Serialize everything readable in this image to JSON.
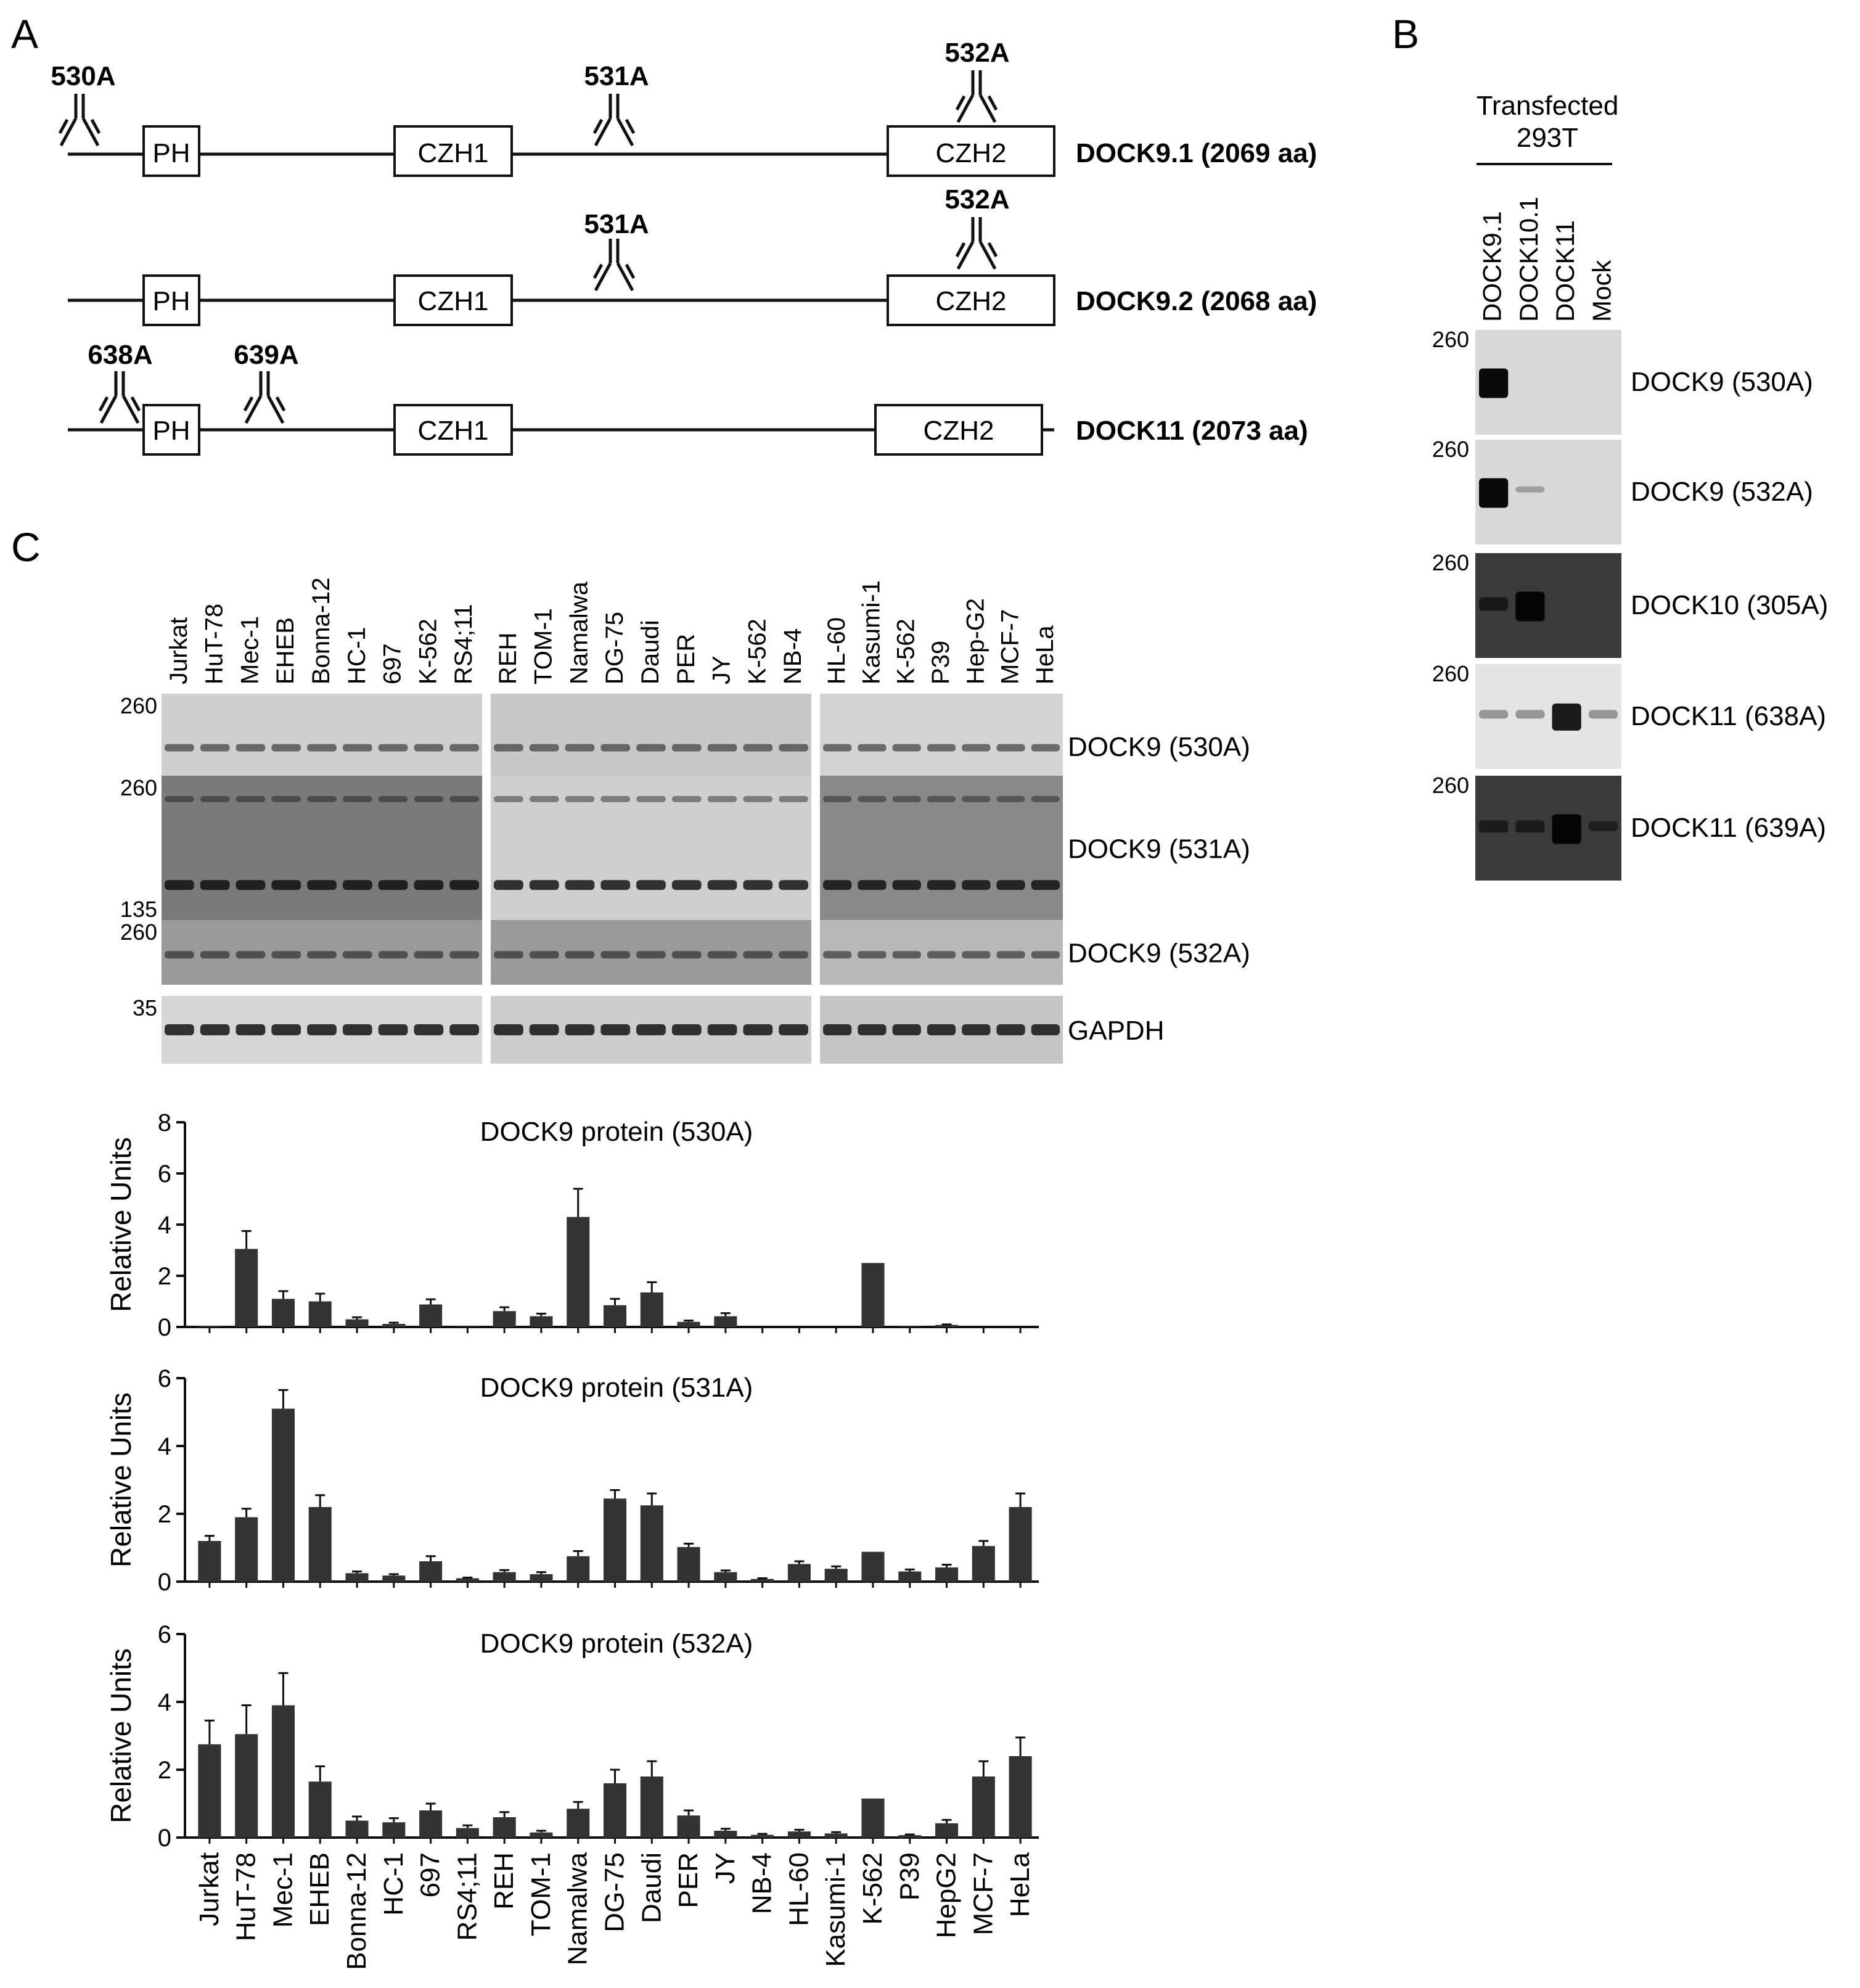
{
  "panel_labels": {
    "a": "A",
    "b": "B",
    "c": "C"
  },
  "panel_a": {
    "constructs": [
      {
        "name": "DOCK9.1 (2069 aa)",
        "domains": [
          "PH",
          "CZH1",
          "CZH2"
        ],
        "antibodies": [
          "530A",
          "531A",
          "532A"
        ]
      },
      {
        "name": "DOCK9.2 (2068 aa)",
        "domains": [
          "PH",
          "CZH1",
          "CZH2"
        ],
        "antibodies": [
          "531A",
          "532A"
        ]
      },
      {
        "name": "DOCK11 (2073 aa)",
        "domains": [
          "PH",
          "CZH1",
          "CZH2"
        ],
        "antibodies": [
          "638A",
          "639A"
        ]
      }
    ]
  },
  "panel_b": {
    "header_line1": "Transfected",
    "header_line2": "293T",
    "lanes": [
      "DOCK9.1",
      "DOCK10.1",
      "DOCK11",
      "Mock"
    ],
    "blots": [
      {
        "label": "DOCK9 (530A)",
        "marker": "260",
        "bands": [
          1.0,
          0,
          0,
          0
        ]
      },
      {
        "label": "DOCK9 (532A)",
        "marker": "260",
        "bands": [
          1.0,
          0.05,
          0,
          0
        ]
      },
      {
        "label": "DOCK10 (305A)",
        "marker": "260",
        "bands": [
          0.35,
          1.0,
          0,
          0
        ]
      },
      {
        "label": "DOCK11 (638A)",
        "marker": "260",
        "bands": [
          0.15,
          0.15,
          0.9,
          0.15
        ]
      },
      {
        "label": "DOCK11 (639A)",
        "marker": "260",
        "bands": [
          0.3,
          0.3,
          1.0,
          0.2
        ]
      }
    ]
  },
  "panel_c": {
    "blot_lanes": [
      [
        "Jurkat",
        "HuT-78",
        "Mec-1",
        "EHEB",
        "Bonna-12",
        "HC-1",
        "697",
        "K-562",
        "RS4;11"
      ],
      [
        "REH",
        "TOM-1",
        "Namalwa",
        "DG-75",
        "Daudi",
        "PER",
        "JY",
        "K-562",
        "NB-4"
      ],
      [
        "HL-60",
        "Kasumi-1",
        "K-562",
        "P39",
        "Hep-G2",
        "MCF-7",
        "HeLa"
      ]
    ],
    "blots": [
      {
        "label": "DOCK9 (530A)",
        "markers": [
          "260"
        ]
      },
      {
        "label": "DOCK9 (531A)",
        "markers": [
          "260",
          "135"
        ]
      },
      {
        "label": "DOCK9 (532A)",
        "markers": [
          "260"
        ]
      },
      {
        "label": "GAPDH",
        "markers": [
          "35"
        ]
      }
    ]
  },
  "chart_data": [
    {
      "type": "bar",
      "title": "DOCK9 protein (530A)",
      "ylabel": "Relative Units",
      "ylim": [
        0,
        8
      ],
      "yticks": [
        "0",
        "2",
        "4",
        "6",
        "8"
      ],
      "categories": [
        "Jurkat",
        "HuT-78",
        "Mec-1",
        "EHEB",
        "Bonna-12",
        "HC-1",
        "697",
        "RS4;11",
        "REH",
        "TOM-1",
        "Namalwa",
        "DG-75",
        "Daudi",
        "PER",
        "JY",
        "NB-4",
        "HL-60",
        "Kasumi-1",
        "K-562",
        "P39",
        "HepG2",
        "MCF-7",
        "HeLa"
      ],
      "values": [
        0.05,
        3.05,
        1.1,
        1.0,
        0.3,
        0.12,
        0.88,
        0.02,
        0.62,
        0.42,
        4.3,
        0.85,
        1.35,
        0.2,
        0.42,
        0.0,
        0.0,
        0.0,
        2.5,
        0.03,
        0.08,
        0.0,
        0.0
      ],
      "errors": [
        0.0,
        0.7,
        0.3,
        0.3,
        0.08,
        0.05,
        0.2,
        0.0,
        0.15,
        0.1,
        1.1,
        0.25,
        0.4,
        0.05,
        0.12,
        0.0,
        0.0,
        0.0,
        0.0,
        0.0,
        0.02,
        0.0,
        0.0
      ]
    },
    {
      "type": "bar",
      "title": "DOCK9 protein (531A)",
      "ylabel": "Relative Units",
      "ylim": [
        0,
        6
      ],
      "yticks": [
        "0",
        "2",
        "4",
        "6"
      ],
      "categories": [
        "Jurkat",
        "HuT-78",
        "Mec-1",
        "EHEB",
        "Bonna-12",
        "HC-1",
        "697",
        "RS4;11",
        "REH",
        "TOM-1",
        "Namalwa",
        "DG-75",
        "Daudi",
        "PER",
        "JY",
        "NB-4",
        "HL-60",
        "Kasumi-1",
        "K-562",
        "P39",
        "HepG2",
        "MCF-7",
        "HeLa"
      ],
      "values": [
        1.2,
        1.9,
        5.1,
        2.2,
        0.25,
        0.18,
        0.6,
        0.1,
        0.28,
        0.22,
        0.75,
        2.45,
        2.25,
        1.02,
        0.28,
        0.08,
        0.52,
        0.38,
        0.88,
        0.3,
        0.42,
        1.05,
        2.2
      ],
      "errors": [
        0.15,
        0.25,
        0.55,
        0.35,
        0.05,
        0.04,
        0.15,
        0.02,
        0.06,
        0.06,
        0.15,
        0.25,
        0.35,
        0.1,
        0.05,
        0.02,
        0.08,
        0.07,
        0.0,
        0.06,
        0.08,
        0.15,
        0.4
      ]
    },
    {
      "type": "bar",
      "title": "DOCK9 protein (532A)",
      "ylabel": "Relative Units",
      "ylim": [
        0,
        6
      ],
      "yticks": [
        "0",
        "2",
        "4",
        "6"
      ],
      "categories": [
        "Jurkat",
        "HuT-78",
        "Mec-1",
        "EHEB",
        "Bonna-12",
        "HC-1",
        "697",
        "RS4;11",
        "REH",
        "TOM-1",
        "Namalwa",
        "DG-75",
        "Daudi",
        "PER",
        "JY",
        "NB-4",
        "HL-60",
        "Kasumi-1",
        "K-562",
        "P39",
        "HepG2",
        "MCF-7",
        "HeLa"
      ],
      "values": [
        2.75,
        3.05,
        3.9,
        1.65,
        0.5,
        0.45,
        0.8,
        0.28,
        0.6,
        0.15,
        0.85,
        1.6,
        1.8,
        0.65,
        0.2,
        0.08,
        0.18,
        0.12,
        1.15,
        0.07,
        0.42,
        1.8,
        2.4
      ],
      "errors": [
        0.7,
        0.85,
        0.95,
        0.45,
        0.12,
        0.12,
        0.2,
        0.08,
        0.15,
        0.05,
        0.2,
        0.4,
        0.45,
        0.15,
        0.06,
        0.03,
        0.05,
        0.04,
        0.0,
        0.02,
        0.1,
        0.45,
        0.55
      ]
    }
  ]
}
